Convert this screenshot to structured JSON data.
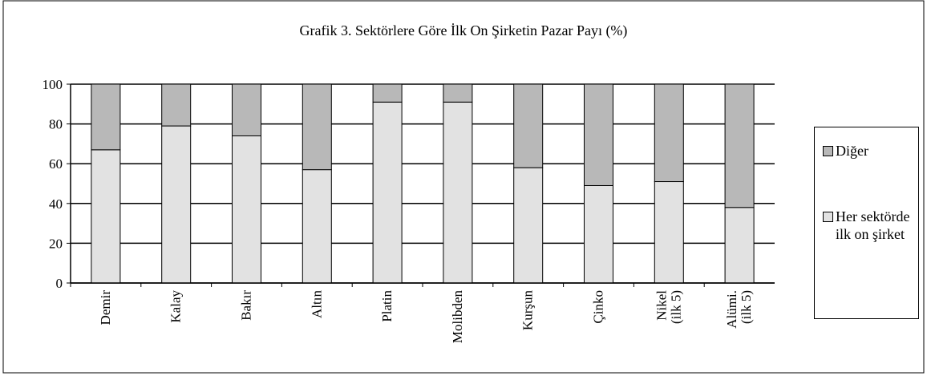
{
  "chart_data": {
    "type": "bar",
    "stacked": true,
    "title": "Grafik 3. Sektörlere Göre İlk On Şirketin Pazar Payı (%)",
    "categories": [
      "Demir",
      "Kalay",
      "Bakır",
      "Altın",
      "Platin",
      "Molibden",
      "Kurşun",
      "Çinko",
      "Nikel (ilk 5)",
      "Alümi. (ilk 5)"
    ],
    "series": [
      {
        "name": "Her sektörde ilk on şirket",
        "color": "#e2e2e2",
        "values": [
          67,
          79,
          74,
          57,
          91,
          91,
          58,
          49,
          51,
          38
        ]
      },
      {
        "name": "Diğer",
        "color": "#b8b8b8",
        "values": [
          33,
          21,
          26,
          43,
          9,
          9,
          42,
          51,
          49,
          62
        ]
      }
    ],
    "ylim": [
      0,
      100
    ],
    "yticks": [
      0,
      20,
      40,
      60,
      80,
      100
    ],
    "grid": true,
    "legend": "right"
  }
}
